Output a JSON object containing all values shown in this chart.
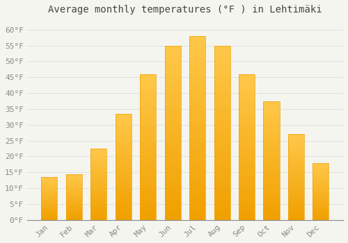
{
  "title": "Average monthly temperatures (°F ) in Lehtimäki",
  "months": [
    "Jan",
    "Feb",
    "Mar",
    "Apr",
    "May",
    "Jun",
    "Jul",
    "Aug",
    "Sep",
    "Oct",
    "Nov",
    "Dec"
  ],
  "values": [
    13.5,
    14.5,
    22.5,
    33.5,
    46,
    55,
    58,
    55,
    46,
    37.5,
    27,
    18
  ],
  "bar_color_top": "#FFC84A",
  "bar_color_bottom": "#F0A000",
  "background_color": "#F5F5F0",
  "grid_color": "#E0E0E0",
  "ylim": [
    0,
    63
  ],
  "yticks": [
    0,
    5,
    10,
    15,
    20,
    25,
    30,
    35,
    40,
    45,
    50,
    55,
    60
  ],
  "title_fontsize": 10,
  "tick_fontsize": 8,
  "tick_color": "#888888",
  "title_color": "#444444",
  "bar_width": 0.65
}
